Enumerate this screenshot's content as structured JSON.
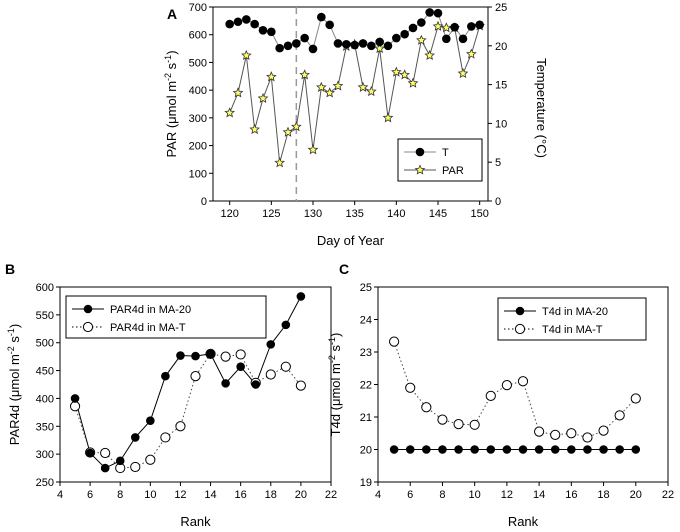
{
  "chart_data": [
    {
      "type": "line",
      "panel": "A",
      "xlabel": "Day of Year",
      "ylabel_left": "PAR (μmol m-2 s-1)",
      "ylabel_right": "Temperature (°C)",
      "xlim": [
        118,
        151
      ],
      "ylim_left": [
        0,
        700
      ],
      "ylim_right": [
        0,
        25
      ],
      "xticks": [
        120,
        125,
        130,
        135,
        140,
        145,
        150
      ],
      "yticks_left": [
        0,
        100,
        200,
        300,
        400,
        500,
        600,
        700
      ],
      "yticks_right": [
        0,
        5,
        10,
        15,
        20,
        25
      ],
      "reference_line_x": 128,
      "legend_position": "lower-right",
      "x": [
        120,
        121,
        122,
        123,
        124,
        125,
        126,
        127,
        128,
        129,
        130,
        131,
        132,
        133,
        134,
        135,
        136,
        137,
        138,
        139,
        140,
        141,
        142,
        143,
        144,
        145,
        146,
        147,
        148,
        149,
        150
      ],
      "series": [
        {
          "name": "T",
          "axis": "right",
          "marker": "filled-circle",
          "values": [
            22.8,
            23.1,
            23.4,
            22.8,
            22.0,
            21.8,
            19.7,
            20.0,
            20.3,
            21.0,
            19.6,
            23.7,
            22.7,
            20.3,
            20.2,
            20.1,
            20.3,
            20.0,
            20.5,
            20.0,
            21.0,
            21.5,
            22.3,
            23.0,
            24.3,
            24.2,
            20.9,
            22.4,
            20.9,
            22.5,
            22.7
          ]
        },
        {
          "name": "PAR",
          "axis": "left",
          "marker": "star",
          "values": [
            318,
            390,
            525,
            258,
            370,
            448,
            138,
            248,
            268,
            455,
            185,
            410,
            390,
            415,
            558,
            565,
            410,
            395,
            550,
            300,
            465,
            455,
            425,
            580,
            525,
            630,
            625,
            625,
            460,
            530,
            632
          ]
        }
      ]
    },
    {
      "type": "line",
      "panel": "B",
      "xlabel": "Rank",
      "ylabel": "PAR4d (μmol m-2 s-1)",
      "xlim": [
        4,
        22
      ],
      "ylim": [
        250,
        600
      ],
      "xticks": [
        4,
        6,
        8,
        10,
        12,
        14,
        16,
        18,
        20,
        22
      ],
      "yticks": [
        250,
        300,
        350,
        400,
        450,
        500,
        550,
        600
      ],
      "legend_position": "top-left",
      "x": [
        5,
        6,
        7,
        8,
        9,
        10,
        11,
        12,
        13,
        14,
        15,
        16,
        17,
        18,
        19,
        20
      ],
      "series": [
        {
          "name": "PAR4d in MA-20",
          "style": "solid",
          "marker": "filled-circle",
          "values": [
            400,
            302,
            275,
            288,
            330,
            360,
            440,
            477,
            476,
            480,
            427,
            457,
            425,
            497,
            532,
            583
          ]
        },
        {
          "name": "PAR4d in MA-T",
          "style": "dotted",
          "marker": "open-circle",
          "values": [
            386,
            303,
            302,
            275,
            277,
            290,
            330,
            350,
            440,
            480,
            475,
            479,
            428,
            443,
            457,
            423
          ]
        }
      ]
    },
    {
      "type": "line",
      "panel": "C",
      "xlabel": "Rank",
      "ylabel": "T4d (μmol m-2 s-1)",
      "xlim": [
        4,
        22
      ],
      "ylim": [
        19,
        25
      ],
      "xticks": [
        4,
        6,
        8,
        10,
        12,
        14,
        16,
        18,
        20,
        22
      ],
      "yticks": [
        19,
        20,
        21,
        22,
        23,
        24,
        25
      ],
      "legend_position": "top-right",
      "x": [
        5,
        6,
        7,
        8,
        9,
        10,
        11,
        12,
        13,
        14,
        15,
        16,
        17,
        18,
        19,
        20
      ],
      "series": [
        {
          "name": "T4d in MA-20",
          "style": "solid",
          "marker": "filled-circle",
          "values": [
            20,
            20,
            20,
            20,
            20,
            20,
            20,
            20,
            20,
            20,
            20,
            20,
            20,
            20,
            20,
            20
          ]
        },
        {
          "name": "T4d in MA-T",
          "style": "dotted",
          "marker": "open-circle",
          "values": [
            23.32,
            21.9,
            21.3,
            20.92,
            20.78,
            20.76,
            21.65,
            21.98,
            22.1,
            20.55,
            20.45,
            20.5,
            20.37,
            20.58,
            21.05,
            21.57
          ]
        }
      ]
    }
  ]
}
